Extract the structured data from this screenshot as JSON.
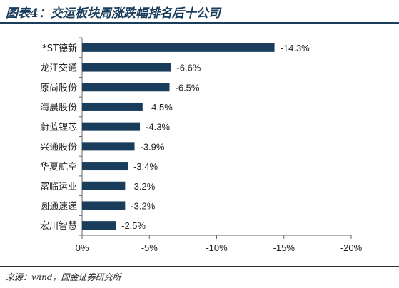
{
  "header": {
    "title": "图表4：交运板块周涨跌幅排名后十公司"
  },
  "footer": {
    "source": "来源：wind，国金证券研究所"
  },
  "chart_data": {
    "type": "bar",
    "orientation": "horizontal",
    "title": "",
    "xlabel": "",
    "ylabel": "",
    "categories": [
      "*ST德新",
      "龙江交通",
      "原尚股份",
      "海晨股份",
      "蔚蓝锂芯",
      "兴通股份",
      "华夏航空",
      "富临运业",
      "圆通速递",
      "宏川智慧"
    ],
    "values": [
      -14.3,
      -6.6,
      -6.5,
      -4.5,
      -4.3,
      -3.9,
      -3.4,
      -3.2,
      -3.2,
      -2.5
    ],
    "data_labels": [
      "-14.3%",
      "-6.6%",
      "-6.5%",
      "-4.5%",
      "-4.3%",
      "-3.9%",
      "-3.4%",
      "-3.2%",
      "-3.2%",
      "-2.5%"
    ],
    "xlim": [
      0,
      -20
    ],
    "x_ticks": [
      0,
      -5,
      -10,
      -15,
      -20
    ],
    "x_tick_labels": [
      "0%",
      "-5%",
      "-10%",
      "-15%",
      "-20%"
    ],
    "grid": false,
    "legend": "none",
    "bar_color": "#1a3d5c"
  }
}
